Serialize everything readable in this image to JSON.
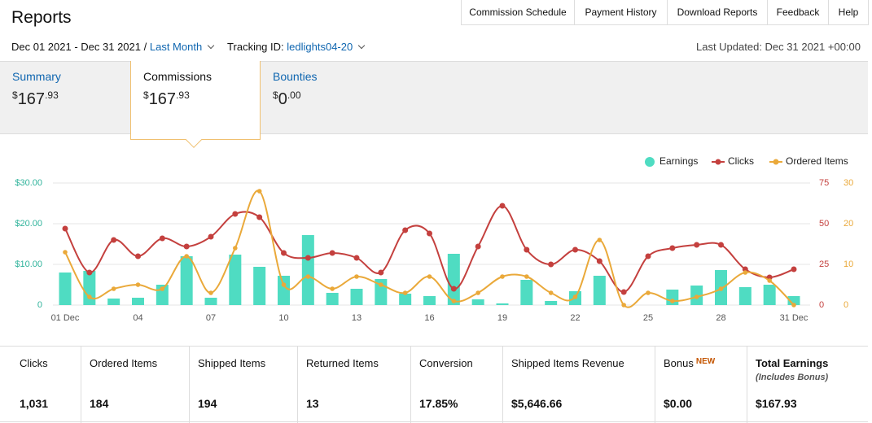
{
  "header": {
    "title": "Reports",
    "nav": [
      "Commission Schedule",
      "Payment History",
      "Download Reports",
      "Feedback",
      "Help"
    ]
  },
  "filters": {
    "date_range": "Dec 01 2021 - Dec 31 2021",
    "separator": "/",
    "period": "Last Month",
    "tracking_label": "Tracking ID:",
    "tracking_id": "ledlights04-20",
    "last_updated": "Last Updated: Dec 31 2021 +00:00"
  },
  "tabs": [
    {
      "label": "Summary",
      "currency": "$",
      "whole": "167",
      "fraction": ".93"
    },
    {
      "label": "Commissions",
      "currency": "$",
      "whole": "167",
      "fraction": ".93"
    },
    {
      "label": "Bounties",
      "currency": "$",
      "whole": "0",
      "fraction": ".00"
    }
  ],
  "chart_data": {
    "type": "bar_line",
    "categories": [
      "01 Dec",
      null,
      null,
      "04",
      null,
      null,
      "07",
      null,
      null,
      "10",
      null,
      null,
      "13",
      null,
      null,
      "16",
      null,
      null,
      "19",
      null,
      null,
      "22",
      null,
      null,
      "25",
      null,
      null,
      "28",
      null,
      null,
      "31 Dec"
    ],
    "series": [
      {
        "name": "Earnings",
        "color": "#4fdcc2",
        "kind": "bar",
        "axis": "y",
        "values": [
          8.0,
          8.4,
          1.6,
          1.8,
          5.0,
          12.0,
          1.8,
          12.4,
          9.4,
          7.2,
          17.2,
          3.0,
          4.0,
          6.4,
          2.8,
          2.2,
          12.6,
          1.4,
          0.4,
          6.2,
          1.0,
          3.4,
          7.2,
          0,
          0,
          3.8,
          4.8,
          8.6,
          4.4,
          5.0,
          2.2
        ]
      },
      {
        "name": "Clicks",
        "color": "#c4403e",
        "kind": "line",
        "axis": "y2",
        "values": [
          47,
          20,
          40,
          30,
          41,
          36,
          42,
          56,
          54,
          32,
          29,
          32,
          29,
          20,
          46,
          44,
          10,
          36,
          61,
          34,
          25,
          34,
          27,
          8,
          30,
          35,
          37,
          37,
          22,
          17,
          22
        ]
      },
      {
        "name": "Ordered Items",
        "color": "#eaa93a",
        "kind": "line",
        "axis": "y3",
        "values": [
          13,
          2,
          4,
          5,
          4,
          12,
          3,
          14,
          28,
          5,
          7,
          4,
          7,
          5,
          3,
          7,
          1,
          3,
          7,
          7,
          3,
          2,
          16,
          0,
          3,
          1,
          2,
          4,
          8,
          6,
          0
        ]
      }
    ],
    "ylim": [
      0,
      30
    ],
    "yticks": [
      0,
      {
        "value": 10,
        "label": "$10.00"
      },
      {
        "value": 20,
        "label": "$20.00"
      },
      {
        "value": 30,
        "label": "$30.00"
      }
    ],
    "y2lim": [
      0,
      75
    ],
    "y2ticks": [
      0,
      25,
      50,
      75
    ],
    "y3lim": [
      0,
      30
    ],
    "y3ticks": [
      0,
      10,
      20,
      30
    ],
    "grid": true,
    "legend": "top-right"
  },
  "stats": [
    {
      "label": "Clicks",
      "value": "1,031"
    },
    {
      "label": "Ordered Items",
      "value": "184"
    },
    {
      "label": "Shipped Items",
      "value": "194"
    },
    {
      "label": "Returned Items",
      "value": "13"
    },
    {
      "label": "Conversion",
      "value": "17.85%"
    },
    {
      "label": "Shipped Items Revenue",
      "value": "$5,646.66"
    },
    {
      "label": "Bonus",
      "badge": "NEW",
      "value": "$0.00"
    },
    {
      "label": "Total Earnings",
      "note": "(Includes Bonus)",
      "value": "$167.93"
    }
  ]
}
